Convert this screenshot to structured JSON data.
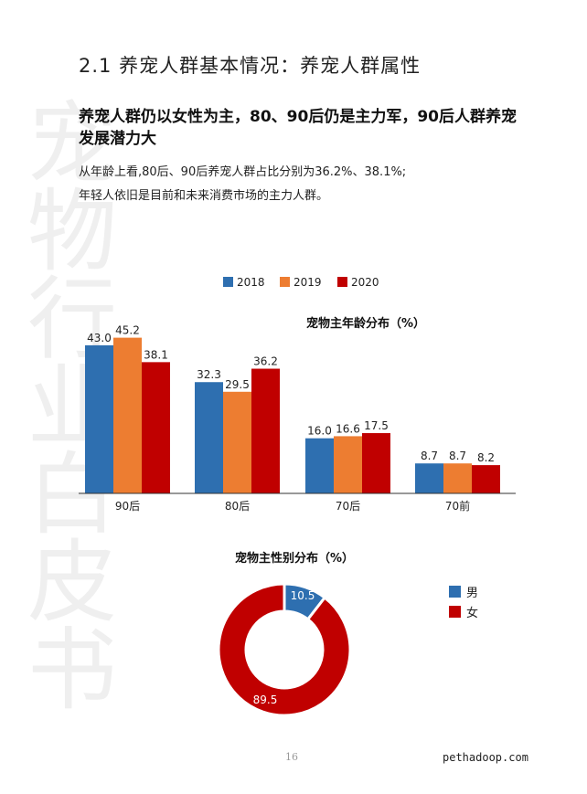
{
  "watermark": [
    "宠",
    "物",
    "行",
    "业",
    "白",
    "皮",
    "书"
  ],
  "section_title": "2.1 养宠人群基本情况：养宠人群属性",
  "headline": "养宠人群仍以女性为主，80、90后仍是主力军，90后人群养宠发展潜力大",
  "body_lines": [
    "从年龄上看,80后、90后养宠人群占比分别为36.2%、38.1%;",
    "年轻人依旧是目前和未来消费市场的主力人群。"
  ],
  "chart_data": [
    {
      "type": "bar",
      "title": "宠物主年龄分布（%）",
      "categories": [
        "90后",
        "80后",
        "70后",
        "70前"
      ],
      "series": [
        {
          "name": "2018",
          "color": "#2e6fb0",
          "values": [
            43.0,
            32.3,
            16.0,
            8.7
          ]
        },
        {
          "name": "2019",
          "color": "#ed7d31",
          "values": [
            45.2,
            29.5,
            16.6,
            8.7
          ]
        },
        {
          "name": "2020",
          "color": "#c00000",
          "values": [
            38.1,
            36.2,
            17.5,
            8.2
          ]
        }
      ],
      "legend_position": "top",
      "grid": false
    },
    {
      "type": "pie",
      "title": "宠物主性别分布（%）",
      "labels": [
        "男",
        "女"
      ],
      "values": [
        10.5,
        89.5
      ],
      "colors": [
        "#2e6fb0",
        "#c00000"
      ],
      "legend_position": "right"
    }
  ],
  "footer": {
    "page_number": "16",
    "site": "pethadoop.com"
  }
}
